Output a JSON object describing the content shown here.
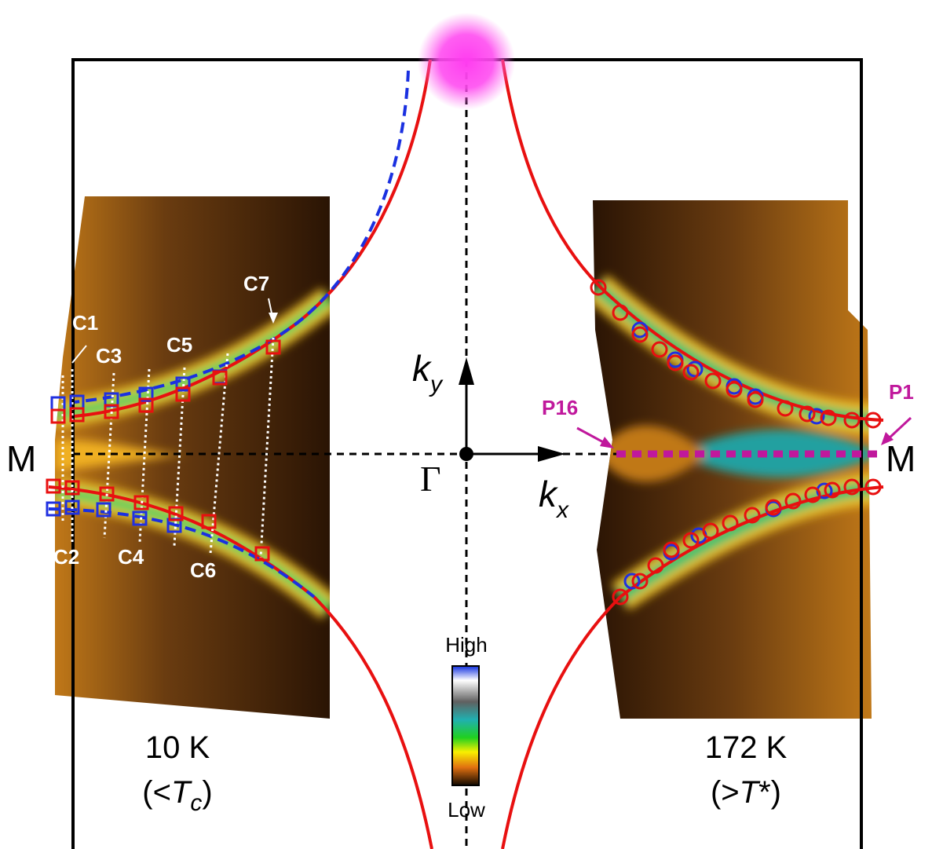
{
  "cuts": [
    "C1",
    "C2",
    "C3",
    "C4",
    "C5",
    "C6",
    "C7"
  ],
  "points": {
    "start": "P16",
    "end": "P1"
  },
  "symmetry_points": {
    "corner_left": "M",
    "corner_right": "M",
    "center": "Γ"
  },
  "axes": {
    "ky": {
      "symbol": "k",
      "subscript": "y"
    },
    "kx": {
      "symbol": "k",
      "subscript": "x"
    }
  },
  "colorbar": {
    "high": "High",
    "low": "Low"
  },
  "panel_left": {
    "temperature": "10 K",
    "condition": {
      "open": "(<",
      "symbol": "T",
      "subscript": "c",
      "close": ")"
    }
  },
  "panel_right": {
    "temperature": "172 K",
    "condition": {
      "open": "(>",
      "symbol": "T",
      "suffix": "*)"
    }
  }
}
